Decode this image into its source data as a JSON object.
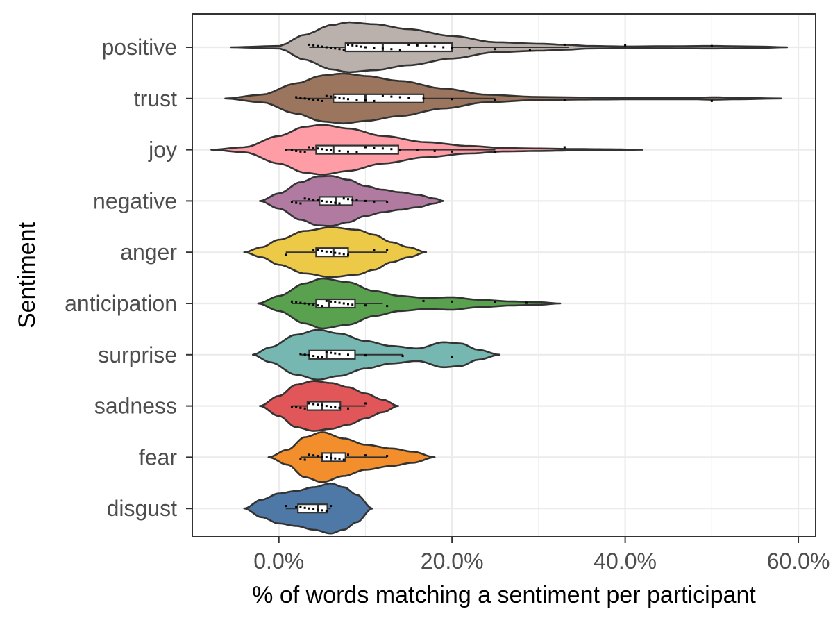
{
  "chart_data": {
    "type": "violin",
    "title": "",
    "xlabel": "% of words matching a sentiment per participant",
    "ylabel": "Sentiment",
    "xlim": [
      -0.1,
      0.62
    ],
    "x_ticks": [
      0.0,
      0.2,
      0.4,
      0.6
    ],
    "x_tick_labels": [
      "0.0%",
      "20.0%",
      "40.0%",
      "60.0%"
    ],
    "grid": true,
    "legend": "none",
    "categories": [
      "positive",
      "trust",
      "joy",
      "negative",
      "anger",
      "anticipation",
      "surprise",
      "sadness",
      "fear",
      "disgust"
    ],
    "series": [
      {
        "category": "positive",
        "color": "#BAB0AC",
        "violin_range": [
          -0.055,
          0.587
        ],
        "density_profile": [
          [
            -0.055,
            0.0
          ],
          [
            0.0,
            0.05
          ],
          [
            0.03,
            0.5
          ],
          [
            0.06,
            0.88
          ],
          [
            0.08,
            1.0
          ],
          [
            0.11,
            0.92
          ],
          [
            0.15,
            0.72
          ],
          [
            0.2,
            0.45
          ],
          [
            0.25,
            0.2
          ],
          [
            0.3,
            0.14
          ],
          [
            0.33,
            0.1
          ],
          [
            0.36,
            0.05
          ],
          [
            0.4,
            0.03
          ],
          [
            0.45,
            0.04
          ],
          [
            0.5,
            0.05
          ],
          [
            0.55,
            0.03
          ],
          [
            0.587,
            0.0
          ]
        ],
        "box": {
          "q1": 0.077,
          "median": 0.12,
          "q3": 0.2
        },
        "whiskers": [
          0.035,
          0.335
        ],
        "points": [
          0.035,
          0.04,
          0.045,
          0.05,
          0.055,
          0.06,
          0.065,
          0.07,
          0.075,
          0.08,
          0.085,
          0.09,
          0.095,
          0.1,
          0.11,
          0.12,
          0.13,
          0.14,
          0.15,
          0.16,
          0.17,
          0.18,
          0.19,
          0.2,
          0.22,
          0.25,
          0.29,
          0.33,
          0.4,
          0.5
        ]
      },
      {
        "category": "trust",
        "color": "#9C755F",
        "violin_range": [
          -0.062,
          0.58
        ],
        "density_profile": [
          [
            -0.062,
            0.0
          ],
          [
            -0.02,
            0.15
          ],
          [
            0.02,
            0.6
          ],
          [
            0.05,
            0.92
          ],
          [
            0.075,
            1.0
          ],
          [
            0.1,
            0.9
          ],
          [
            0.14,
            0.7
          ],
          [
            0.19,
            0.4
          ],
          [
            0.24,
            0.15
          ],
          [
            0.3,
            0.06
          ],
          [
            0.36,
            0.04
          ],
          [
            0.42,
            0.03
          ],
          [
            0.48,
            0.03
          ],
          [
            0.5,
            0.05
          ],
          [
            0.53,
            0.03
          ],
          [
            0.58,
            0.0
          ]
        ],
        "box": {
          "q1": 0.063,
          "median": 0.1,
          "q3": 0.167
        },
        "whiskers": [
          0.02,
          0.25
        ],
        "points": [
          0.02,
          0.025,
          0.03,
          0.035,
          0.04,
          0.045,
          0.05,
          0.055,
          0.06,
          0.065,
          0.07,
          0.075,
          0.08,
          0.09,
          0.1,
          0.11,
          0.12,
          0.13,
          0.14,
          0.15,
          0.167,
          0.2,
          0.25,
          0.33,
          0.5
        ]
      },
      {
        "category": "joy",
        "color": "#FF9DA7",
        "violin_range": [
          -0.078,
          0.42
        ],
        "density_profile": [
          [
            -0.078,
            0.0
          ],
          [
            -0.04,
            0.1
          ],
          [
            0.0,
            0.55
          ],
          [
            0.03,
            0.92
          ],
          [
            0.05,
            1.0
          ],
          [
            0.08,
            0.85
          ],
          [
            0.12,
            0.55
          ],
          [
            0.17,
            0.3
          ],
          [
            0.22,
            0.15
          ],
          [
            0.26,
            0.07
          ],
          [
            0.3,
            0.05
          ],
          [
            0.34,
            0.03
          ],
          [
            0.38,
            0.02
          ],
          [
            0.42,
            0.0
          ]
        ],
        "box": {
          "q1": 0.043,
          "median": 0.063,
          "q3": 0.138
        },
        "whiskers": [
          0.008,
          0.25
        ],
        "points": [
          0.008,
          0.015,
          0.02,
          0.025,
          0.03,
          0.035,
          0.04,
          0.045,
          0.05,
          0.055,
          0.06,
          0.07,
          0.08,
          0.09,
          0.1,
          0.11,
          0.12,
          0.13,
          0.14,
          0.16,
          0.18,
          0.2,
          0.25,
          0.33
        ]
      },
      {
        "category": "negative",
        "color": "#B07AA1",
        "violin_range": [
          -0.022,
          0.19
        ],
        "density_profile": [
          [
            -0.022,
            0.0
          ],
          [
            0.0,
            0.3
          ],
          [
            0.025,
            0.75
          ],
          [
            0.045,
            0.98
          ],
          [
            0.06,
            1.0
          ],
          [
            0.08,
            0.85
          ],
          [
            0.1,
            0.6
          ],
          [
            0.12,
            0.45
          ],
          [
            0.14,
            0.35
          ],
          [
            0.16,
            0.25
          ],
          [
            0.18,
            0.1
          ],
          [
            0.19,
            0.0
          ]
        ],
        "box": {
          "q1": 0.047,
          "median": 0.066,
          "q3": 0.085
        },
        "whiskers": [
          0.015,
          0.125
        ],
        "points": [
          0.015,
          0.02,
          0.025,
          0.03,
          0.035,
          0.04,
          0.045,
          0.05,
          0.055,
          0.06,
          0.065,
          0.07,
          0.075,
          0.08,
          0.085,
          0.09,
          0.1,
          0.11,
          0.125
        ]
      },
      {
        "category": "anger",
        "color": "#EDC948",
        "violin_range": [
          -0.04,
          0.17
        ],
        "density_profile": [
          [
            -0.04,
            0.0
          ],
          [
            -0.02,
            0.2
          ],
          [
            0.0,
            0.5
          ],
          [
            0.03,
            0.85
          ],
          [
            0.06,
            1.0
          ],
          [
            0.09,
            0.9
          ],
          [
            0.11,
            0.7
          ],
          [
            0.13,
            0.4
          ],
          [
            0.15,
            0.2
          ],
          [
            0.17,
            0.0
          ]
        ],
        "box": {
          "q1": 0.043,
          "median": 0.063,
          "q3": 0.08
        },
        "whiskers": [
          0.008,
          0.125
        ],
        "points": [
          0.008,
          0.04,
          0.045,
          0.05,
          0.055,
          0.06,
          0.065,
          0.07,
          0.075,
          0.08,
          0.11,
          0.125
        ]
      },
      {
        "category": "anticipation",
        "color": "#59A14F",
        "violin_range": [
          -0.024,
          0.325
        ],
        "density_profile": [
          [
            -0.024,
            0.0
          ],
          [
            0.0,
            0.3
          ],
          [
            0.03,
            0.8
          ],
          [
            0.05,
            1.0
          ],
          [
            0.08,
            0.85
          ],
          [
            0.11,
            0.5
          ],
          [
            0.14,
            0.3
          ],
          [
            0.17,
            0.22
          ],
          [
            0.2,
            0.25
          ],
          [
            0.23,
            0.15
          ],
          [
            0.27,
            0.08
          ],
          [
            0.3,
            0.05
          ],
          [
            0.325,
            0.0
          ]
        ],
        "box": {
          "q1": 0.043,
          "median": 0.058,
          "q3": 0.088
        },
        "whiskers": [
          0.015,
          0.12
        ],
        "points": [
          0.015,
          0.02,
          0.025,
          0.03,
          0.035,
          0.04,
          0.045,
          0.05,
          0.055,
          0.06,
          0.065,
          0.07,
          0.075,
          0.08,
          0.085,
          0.1,
          0.125,
          0.167,
          0.2,
          0.25,
          0.286
        ]
      },
      {
        "category": "surprise",
        "color": "#76B7B2",
        "violin_range": [
          -0.03,
          0.255
        ],
        "density_profile": [
          [
            -0.03,
            0.0
          ],
          [
            -0.01,
            0.3
          ],
          [
            0.02,
            0.8
          ],
          [
            0.045,
            1.0
          ],
          [
            0.07,
            0.85
          ],
          [
            0.1,
            0.55
          ],
          [
            0.13,
            0.35
          ],
          [
            0.16,
            0.25
          ],
          [
            0.19,
            0.5
          ],
          [
            0.21,
            0.45
          ],
          [
            0.23,
            0.2
          ],
          [
            0.255,
            0.0
          ]
        ],
        "box": {
          "q1": 0.035,
          "median": 0.055,
          "q3": 0.088
        },
        "whiskers": [
          0.025,
          0.143
        ],
        "points": [
          0.025,
          0.03,
          0.035,
          0.04,
          0.045,
          0.05,
          0.055,
          0.06,
          0.065,
          0.07,
          0.08,
          0.1,
          0.143,
          0.2
        ]
      },
      {
        "category": "sadness",
        "color": "#E15759",
        "violin_range": [
          -0.022,
          0.138
        ],
        "density_profile": [
          [
            -0.022,
            0.0
          ],
          [
            0.0,
            0.4
          ],
          [
            0.02,
            0.85
          ],
          [
            0.04,
            1.0
          ],
          [
            0.06,
            0.92
          ],
          [
            0.08,
            0.75
          ],
          [
            0.1,
            0.5
          ],
          [
            0.12,
            0.25
          ],
          [
            0.138,
            0.0
          ]
        ],
        "box": {
          "q1": 0.033,
          "median": 0.05,
          "q3": 0.071
        },
        "whiskers": [
          0.015,
          0.1
        ],
        "points": [
          0.015,
          0.02,
          0.025,
          0.03,
          0.035,
          0.04,
          0.045,
          0.05,
          0.055,
          0.06,
          0.065,
          0.07,
          0.08,
          0.1
        ]
      },
      {
        "category": "fear",
        "color": "#F28E2B",
        "violin_range": [
          -0.012,
          0.18
        ],
        "density_profile": [
          [
            -0.012,
            0.0
          ],
          [
            0.01,
            0.3
          ],
          [
            0.03,
            0.8
          ],
          [
            0.05,
            1.0
          ],
          [
            0.075,
            0.75
          ],
          [
            0.1,
            0.5
          ],
          [
            0.13,
            0.35
          ],
          [
            0.155,
            0.22
          ],
          [
            0.18,
            0.0
          ]
        ],
        "box": {
          "q1": 0.05,
          "median": 0.06,
          "q3": 0.077
        },
        "whiskers": [
          0.025,
          0.125
        ],
        "points": [
          0.025,
          0.03,
          0.035,
          0.04,
          0.045,
          0.05,
          0.055,
          0.06,
          0.065,
          0.07,
          0.075,
          0.08,
          0.1,
          0.125
        ]
      },
      {
        "category": "disgust",
        "color": "#4E79A7",
        "violin_range": [
          -0.04,
          0.108
        ],
        "density_profile": [
          [
            -0.04,
            0.0
          ],
          [
            -0.02,
            0.35
          ],
          [
            0.0,
            0.6
          ],
          [
            0.02,
            0.7
          ],
          [
            0.04,
            0.85
          ],
          [
            0.06,
            1.0
          ],
          [
            0.075,
            0.85
          ],
          [
            0.09,
            0.55
          ],
          [
            0.108,
            0.0
          ]
        ],
        "box": {
          "q1": 0.022,
          "median": 0.045,
          "q3": 0.056
        },
        "whiskers": [
          0.008,
          0.06
        ],
        "points": [
          0.008,
          0.02,
          0.025,
          0.03,
          0.035,
          0.04,
          0.045,
          0.05,
          0.055,
          0.06
        ]
      }
    ]
  }
}
